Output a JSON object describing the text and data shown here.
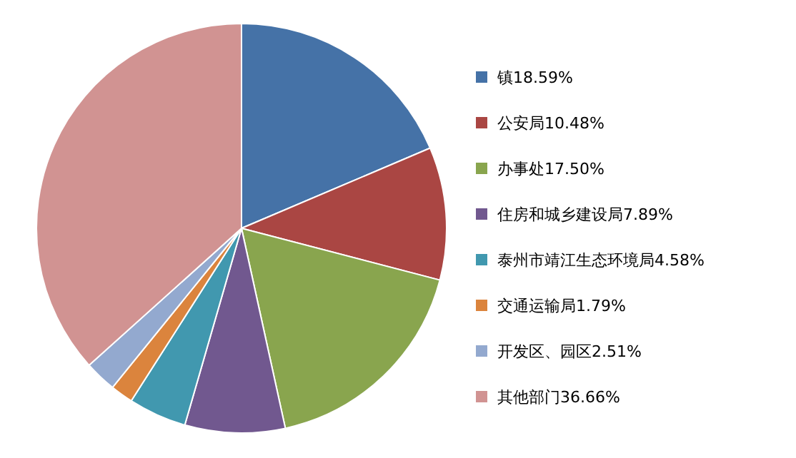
{
  "chart_data": {
    "type": "pie",
    "categories": [
      "镇",
      "公安局",
      "办事处",
      "住房和城乡建设局",
      "泰州市靖江生态环境局",
      "交通运输局",
      "开发区、园区",
      "其他部门"
    ],
    "values": [
      18.59,
      10.48,
      17.5,
      7.89,
      4.58,
      1.79,
      2.51,
      36.66
    ],
    "value_labels": [
      "18.59%",
      "10.48%",
      "17.50%",
      "7.89%",
      "4.58%",
      "1.79%",
      "2.51%",
      "36.66%"
    ],
    "colors": [
      "#4572a7",
      "#aa4643",
      "#89a54e",
      "#71588f",
      "#4198af",
      "#db843d",
      "#93a9cf",
      "#d19392"
    ],
    "legend": "right"
  }
}
